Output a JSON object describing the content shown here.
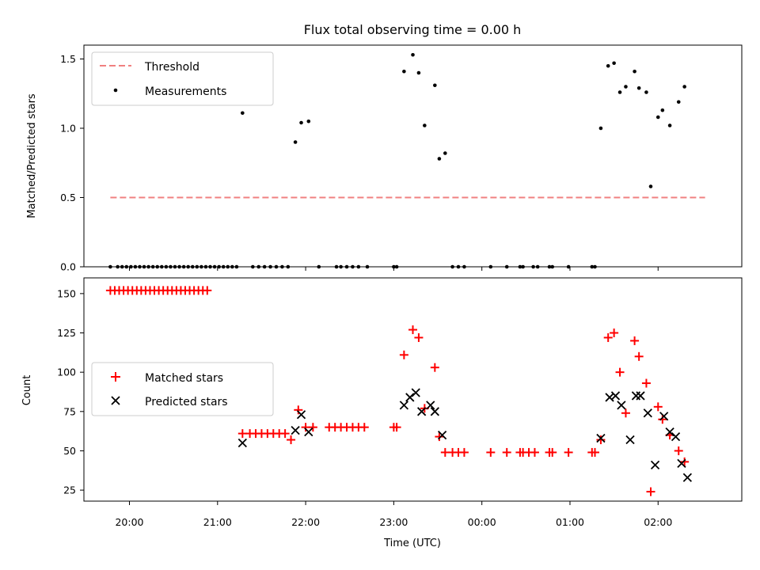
{
  "chart_data": [
    {
      "type": "scatter",
      "title": "Flux total observing time = 0.00 h",
      "ylabel": "Matched/Predicted stars",
      "xlabel": "",
      "xlim": [
        "19:29",
        "02:57"
      ],
      "ylim": [
        0,
        1.6
      ],
      "yticks": [
        "0.0",
        "0.5",
        "1.0",
        "1.5"
      ],
      "grid": false,
      "legend_position": "upper-left",
      "series": [
        {
          "name": "Threshold",
          "style": "dashed-line",
          "color": "#f08080",
          "points": [
            [
              "19:47",
              0.5
            ],
            [
              "02:32",
              0.5
            ]
          ]
        },
        {
          "name": "Measurements",
          "style": "dot",
          "color": "#000000",
          "points": [
            [
              "19:47",
              0
            ],
            [
              "19:52",
              0
            ],
            [
              "19:55",
              0
            ],
            [
              "19:58",
              0
            ],
            [
              "20:01",
              0
            ],
            [
              "20:04",
              0
            ],
            [
              "20:07",
              0
            ],
            [
              "20:10",
              0
            ],
            [
              "20:13",
              0
            ],
            [
              "20:16",
              0
            ],
            [
              "20:19",
              0
            ],
            [
              "20:22",
              0
            ],
            [
              "20:25",
              0
            ],
            [
              "20:28",
              0
            ],
            [
              "20:31",
              0
            ],
            [
              "20:34",
              0
            ],
            [
              "20:37",
              0
            ],
            [
              "20:40",
              0
            ],
            [
              "20:43",
              0
            ],
            [
              "20:46",
              0
            ],
            [
              "20:49",
              0
            ],
            [
              "20:52",
              0
            ],
            [
              "20:55",
              0
            ],
            [
              "20:58",
              0
            ],
            [
              "21:01",
              0
            ],
            [
              "21:04",
              0
            ],
            [
              "21:07",
              0
            ],
            [
              "21:10",
              0
            ],
            [
              "21:13",
              0
            ],
            [
              "21:17",
              1.11
            ],
            [
              "21:24",
              0
            ],
            [
              "21:28",
              0
            ],
            [
              "21:32",
              0
            ],
            [
              "21:36",
              0
            ],
            [
              "21:40",
              0
            ],
            [
              "21:44",
              0
            ],
            [
              "21:48",
              0
            ],
            [
              "21:53",
              0.9
            ],
            [
              "21:57",
              1.04
            ],
            [
              "22:02",
              1.05
            ],
            [
              "22:09",
              0
            ],
            [
              "22:21",
              0
            ],
            [
              "22:24",
              0
            ],
            [
              "22:28",
              0
            ],
            [
              "22:32",
              0
            ],
            [
              "22:36",
              0
            ],
            [
              "22:42",
              0
            ],
            [
              "23:00",
              0
            ],
            [
              "23:02",
              0
            ],
            [
              "23:07",
              1.41
            ],
            [
              "23:13",
              1.53
            ],
            [
              "23:17",
              1.4
            ],
            [
              "23:21",
              1.02
            ],
            [
              "23:28",
              1.31
            ],
            [
              "23:31",
              0.78
            ],
            [
              "23:35",
              0.82
            ],
            [
              "23:40",
              0
            ],
            [
              "23:44",
              0
            ],
            [
              "23:48",
              0
            ],
            [
              "00:06",
              0
            ],
            [
              "00:17",
              0
            ],
            [
              "00:26",
              0
            ],
            [
              "00:28",
              0
            ],
            [
              "00:35",
              0
            ],
            [
              "00:38",
              0
            ],
            [
              "00:46",
              0
            ],
            [
              "00:48",
              0
            ],
            [
              "00:59",
              0
            ],
            [
              "01:15",
              0
            ],
            [
              "01:17",
              0
            ],
            [
              "01:21",
              1.0
            ],
            [
              "01:26",
              1.45
            ],
            [
              "01:30",
              1.47
            ],
            [
              "01:34",
              1.26
            ],
            [
              "01:38",
              1.3
            ],
            [
              "01:44",
              1.41
            ],
            [
              "01:47",
              1.29
            ],
            [
              "01:52",
              1.26
            ],
            [
              "01:55",
              0.58
            ],
            [
              "02:00",
              1.08
            ],
            [
              "02:03",
              1.13
            ],
            [
              "02:08",
              1.02
            ],
            [
              "02:14",
              1.19
            ],
            [
              "02:18",
              1.3
            ]
          ]
        }
      ]
    },
    {
      "type": "scatter",
      "title": "",
      "ylabel": "Count",
      "xlabel": "Time (UTC)",
      "xlim": [
        "19:29",
        "02:57"
      ],
      "ylim": [
        18,
        160
      ],
      "yticks": [
        "25",
        "50",
        "75",
        "100",
        "125",
        "150"
      ],
      "xticks": [
        "20:00",
        "21:00",
        "22:00",
        "23:00",
        "00:00",
        "01:00",
        "02:00"
      ],
      "grid": false,
      "legend_position": "center-left",
      "series": [
        {
          "name": "Matched stars",
          "marker": "plus",
          "color": "#ff0000",
          "points": [
            [
              "19:47",
              152
            ],
            [
              "19:50",
              152
            ],
            [
              "19:53",
              152
            ],
            [
              "19:56",
              152
            ],
            [
              "19:59",
              152
            ],
            [
              "20:02",
              152
            ],
            [
              "20:05",
              152
            ],
            [
              "20:08",
              152
            ],
            [
              "20:11",
              152
            ],
            [
              "20:14",
              152
            ],
            [
              "20:17",
              152
            ],
            [
              "20:20",
              152
            ],
            [
              "20:23",
              152
            ],
            [
              "20:26",
              152
            ],
            [
              "20:29",
              152
            ],
            [
              "20:32",
              152
            ],
            [
              "20:35",
              152
            ],
            [
              "20:38",
              152
            ],
            [
              "20:41",
              152
            ],
            [
              "20:44",
              152
            ],
            [
              "20:47",
              152
            ],
            [
              "20:50",
              152
            ],
            [
              "20:53",
              152
            ],
            [
              "21:17",
              61
            ],
            [
              "21:22",
              61
            ],
            [
              "21:26",
              61
            ],
            [
              "21:30",
              61
            ],
            [
              "21:34",
              61
            ],
            [
              "21:38",
              61
            ],
            [
              "21:42",
              61
            ],
            [
              "21:46",
              61
            ],
            [
              "21:50",
              57
            ],
            [
              "21:55",
              76
            ],
            [
              "22:00",
              65
            ],
            [
              "22:05",
              65
            ],
            [
              "22:16",
              65
            ],
            [
              "22:20",
              65
            ],
            [
              "22:24",
              65
            ],
            [
              "22:28",
              65
            ],
            [
              "22:32",
              65
            ],
            [
              "22:36",
              65
            ],
            [
              "22:40",
              65
            ],
            [
              "23:00",
              65
            ],
            [
              "23:02",
              65
            ],
            [
              "23:07",
              111
            ],
            [
              "23:13",
              127
            ],
            [
              "23:17",
              122
            ],
            [
              "23:21",
              77
            ],
            [
              "23:28",
              103
            ],
            [
              "23:31",
              59
            ],
            [
              "23:35",
              49
            ],
            [
              "23:40",
              49
            ],
            [
              "23:44",
              49
            ],
            [
              "23:48",
              49
            ],
            [
              "00:06",
              49
            ],
            [
              "00:17",
              49
            ],
            [
              "00:26",
              49
            ],
            [
              "00:28",
              49
            ],
            [
              "00:32",
              49
            ],
            [
              "00:36",
              49
            ],
            [
              "00:46",
              49
            ],
            [
              "00:48",
              49
            ],
            [
              "00:59",
              49
            ],
            [
              "01:15",
              49
            ],
            [
              "01:17",
              49
            ],
            [
              "01:21",
              57
            ],
            [
              "01:26",
              122
            ],
            [
              "01:30",
              125
            ],
            [
              "01:34",
              100
            ],
            [
              "01:38",
              74
            ],
            [
              "01:44",
              120
            ],
            [
              "01:47",
              110
            ],
            [
              "01:52",
              93
            ],
            [
              "01:55",
              24
            ],
            [
              "02:00",
              78
            ],
            [
              "02:03",
              70
            ],
            [
              "02:08",
              60
            ],
            [
              "02:14",
              50
            ],
            [
              "02:18",
              43
            ]
          ]
        },
        {
          "name": "Predicted stars",
          "marker": "x",
          "color": "#000000",
          "points": [
            [
              "21:17",
              55
            ],
            [
              "21:53",
              63
            ],
            [
              "21:57",
              73
            ],
            [
              "22:02",
              62
            ],
            [
              "23:07",
              79
            ],
            [
              "23:11",
              84
            ],
            [
              "23:15",
              87
            ],
            [
              "23:19",
              75
            ],
            [
              "23:25",
              79
            ],
            [
              "23:28",
              75
            ],
            [
              "23:33",
              60
            ],
            [
              "01:21",
              58
            ],
            [
              "01:27",
              84
            ],
            [
              "01:31",
              85
            ],
            [
              "01:35",
              79
            ],
            [
              "01:41",
              57
            ],
            [
              "01:45",
              85
            ],
            [
              "01:48",
              85
            ],
            [
              "01:53",
              74
            ],
            [
              "01:58",
              41
            ],
            [
              "02:04",
              72
            ],
            [
              "02:08",
              62
            ],
            [
              "02:12",
              59
            ],
            [
              "02:16",
              42
            ],
            [
              "02:20",
              33
            ]
          ]
        }
      ]
    }
  ]
}
